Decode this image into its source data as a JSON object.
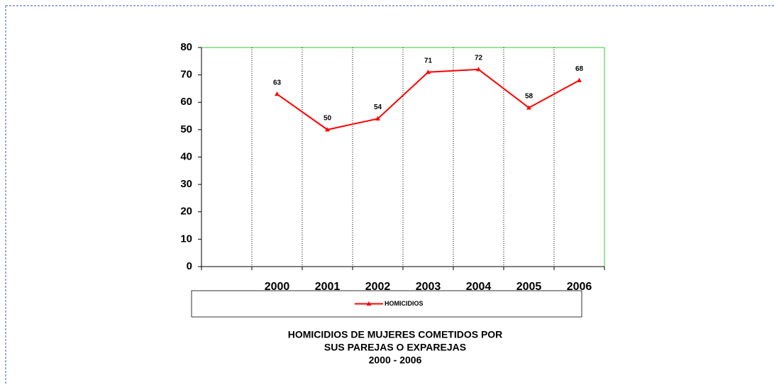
{
  "chart_data": {
    "type": "line",
    "title": [
      "HOMICIDIOS DE MUJERES COMETIDOS POR",
      "SUS PAREJAS O EXPAREJAS",
      "2000 - 2006"
    ],
    "categories": [
      null,
      "2000",
      "2001",
      "2002",
      "2003",
      "2004",
      "2005",
      "2006"
    ],
    "series": [
      {
        "name": "HOMICIDIOS",
        "color": "#ff0000",
        "values": [
          null,
          63,
          50,
          54,
          71,
          72,
          58,
          68
        ]
      }
    ],
    "ylim": [
      0,
      80
    ],
    "yticks": [
      0,
      10,
      20,
      30,
      40,
      50,
      60,
      70,
      80
    ],
    "grid": "vertical",
    "legend": "bottom",
    "data_labels": true
  }
}
